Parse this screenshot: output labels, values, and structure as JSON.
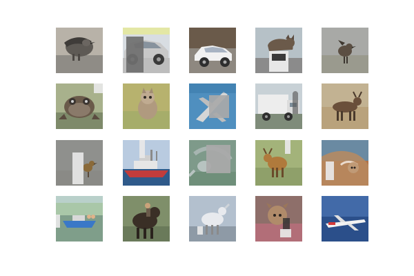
{
  "grid": {
    "tiles": [
      {
        "row": 1,
        "col": 1,
        "subject": "bird",
        "icon": "bird-icon"
      },
      {
        "row": 1,
        "col": 2,
        "subject": "automobile",
        "icon": "automobile-icon"
      },
      {
        "row": 1,
        "col": 3,
        "subject": "automobile",
        "icon": "automobile-icon"
      },
      {
        "row": 1,
        "col": 4,
        "subject": "cat",
        "icon": "cat-icon"
      },
      {
        "row": 1,
        "col": 5,
        "subject": "bird",
        "icon": "bird-icon"
      },
      {
        "row": 2,
        "col": 1,
        "subject": "frog",
        "icon": "frog-icon"
      },
      {
        "row": 2,
        "col": 2,
        "subject": "cat",
        "icon": "cat-icon"
      },
      {
        "row": 2,
        "col": 3,
        "subject": "airplane",
        "icon": "airplane-icon"
      },
      {
        "row": 2,
        "col": 4,
        "subject": "truck",
        "icon": "truck-icon"
      },
      {
        "row": 2,
        "col": 5,
        "subject": "deer",
        "icon": "deer-icon"
      },
      {
        "row": 3,
        "col": 1,
        "subject": "bird",
        "icon": "bird-icon"
      },
      {
        "row": 3,
        "col": 2,
        "subject": "ship",
        "icon": "ship-icon"
      },
      {
        "row": 3,
        "col": 3,
        "subject": "bird",
        "icon": "bird-icon"
      },
      {
        "row": 3,
        "col": 4,
        "subject": "deer",
        "icon": "deer-icon"
      },
      {
        "row": 3,
        "col": 5,
        "subject": "cat",
        "icon": "cat-icon"
      },
      {
        "row": 4,
        "col": 1,
        "subject": "ship",
        "icon": "ship-icon"
      },
      {
        "row": 4,
        "col": 2,
        "subject": "horse",
        "icon": "horse-icon"
      },
      {
        "row": 4,
        "col": 3,
        "subject": "horse",
        "icon": "horse-icon"
      },
      {
        "row": 4,
        "col": 4,
        "subject": "dog",
        "icon": "dog-icon"
      },
      {
        "row": 4,
        "col": 5,
        "subject": "airplane",
        "icon": "airplane-icon"
      }
    ]
  },
  "colors": {
    "background": "#ffffff",
    "cutout": "#a9a9a9",
    "cutout_dark": "#6f6f6f",
    "cutout_light": "#e8e8e8"
  }
}
